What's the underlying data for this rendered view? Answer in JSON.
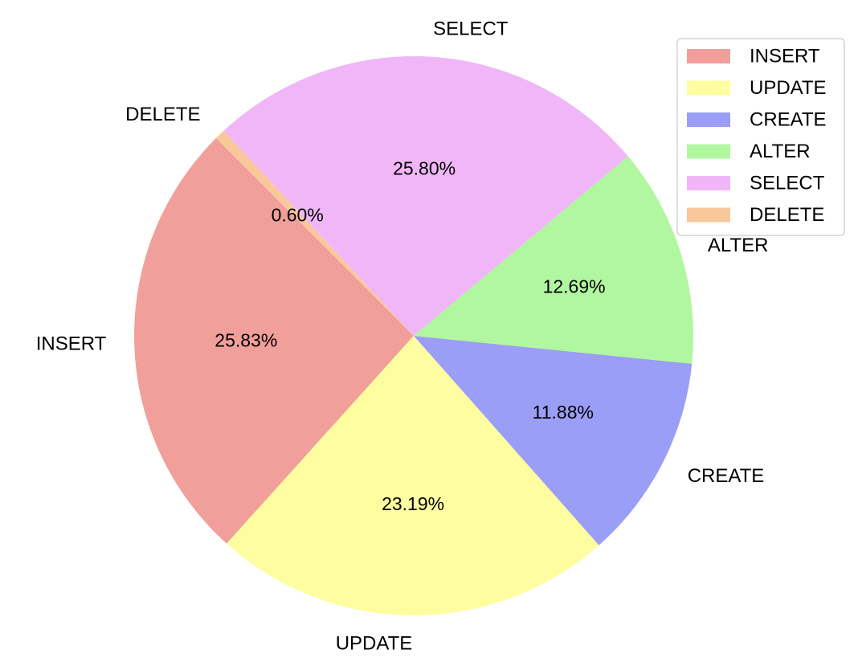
{
  "chart_data": {
    "type": "pie",
    "title": "",
    "categories": [
      "INSERT",
      "UPDATE",
      "CREATE",
      "ALTER",
      "SELECT",
      "DELETE"
    ],
    "values": [
      25.83,
      23.19,
      11.88,
      12.69,
      25.8,
      0.6
    ],
    "value_labels": [
      "25.83%",
      "23.19%",
      "11.88%",
      "12.69%",
      "25.80%",
      "0.60%"
    ],
    "colors": [
      "#f19f9a",
      "#fefea0",
      "#9b9ef7",
      "#b0f7a0",
      "#f0b6f8",
      "#f8c89a"
    ],
    "start_angle_deg": 135,
    "direction": "counterclockwise",
    "legend": {
      "placement": "top-right",
      "entries": [
        "INSERT",
        "UPDATE",
        "CREATE",
        "ALTER",
        "SELECT",
        "DELETE"
      ]
    }
  }
}
